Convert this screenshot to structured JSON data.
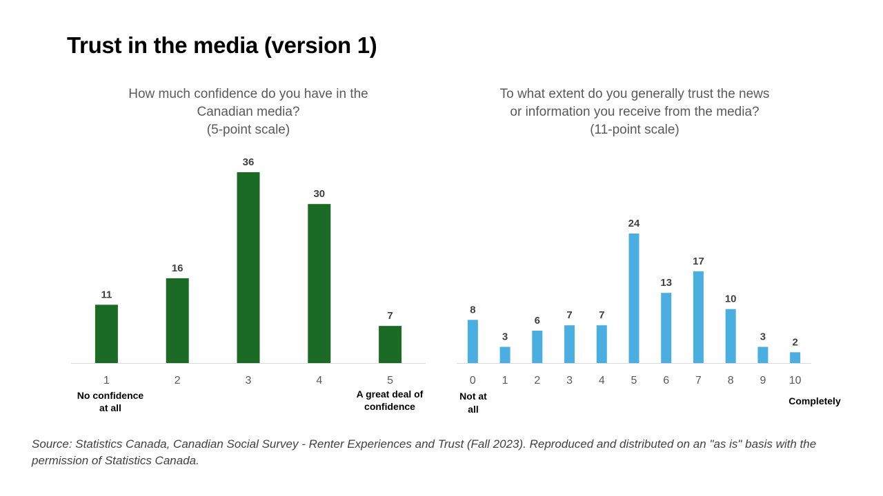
{
  "slide": {
    "title": "Trust in the media (version 1)",
    "source": "Source: Statistics Canada, Canadian Social Survey - Renter Experiences and Trust (Fall 2023). Reproduced and distributed on an \"as is\" basis with the permission of Statistics Canada."
  },
  "chart_data": [
    {
      "type": "bar",
      "title": [
        "How much confidence do you have in the",
        "Canadian media?",
        "(5-point scale)"
      ],
      "categories": [
        "1",
        "2",
        "3",
        "4",
        "5"
      ],
      "values": [
        11,
        16,
        36,
        30,
        7
      ],
      "data_labels": true,
      "ylim": [
        0,
        36
      ],
      "grid": false,
      "color": "#1b6b26",
      "scale_labels": {
        "low": [
          "No confidence",
          "at all"
        ],
        "high": [
          "A great deal of",
          "confidence"
        ]
      }
    },
    {
      "type": "bar",
      "title": [
        "To what extent do you generally trust the news",
        "or information you receive from the media?",
        "(11-point scale)"
      ],
      "categories": [
        "0",
        "1",
        "2",
        "3",
        "4",
        "5",
        "6",
        "7",
        "8",
        "9",
        "10"
      ],
      "values": [
        8,
        3,
        6,
        7,
        7,
        24,
        13,
        17,
        10,
        3,
        2
      ],
      "data_labels": true,
      "ylim": [
        0,
        24
      ],
      "grid": false,
      "color": "#4aafe0",
      "scale_labels": {
        "low": [
          "Not at",
          "all"
        ],
        "high": [
          "Completely"
        ]
      }
    }
  ]
}
